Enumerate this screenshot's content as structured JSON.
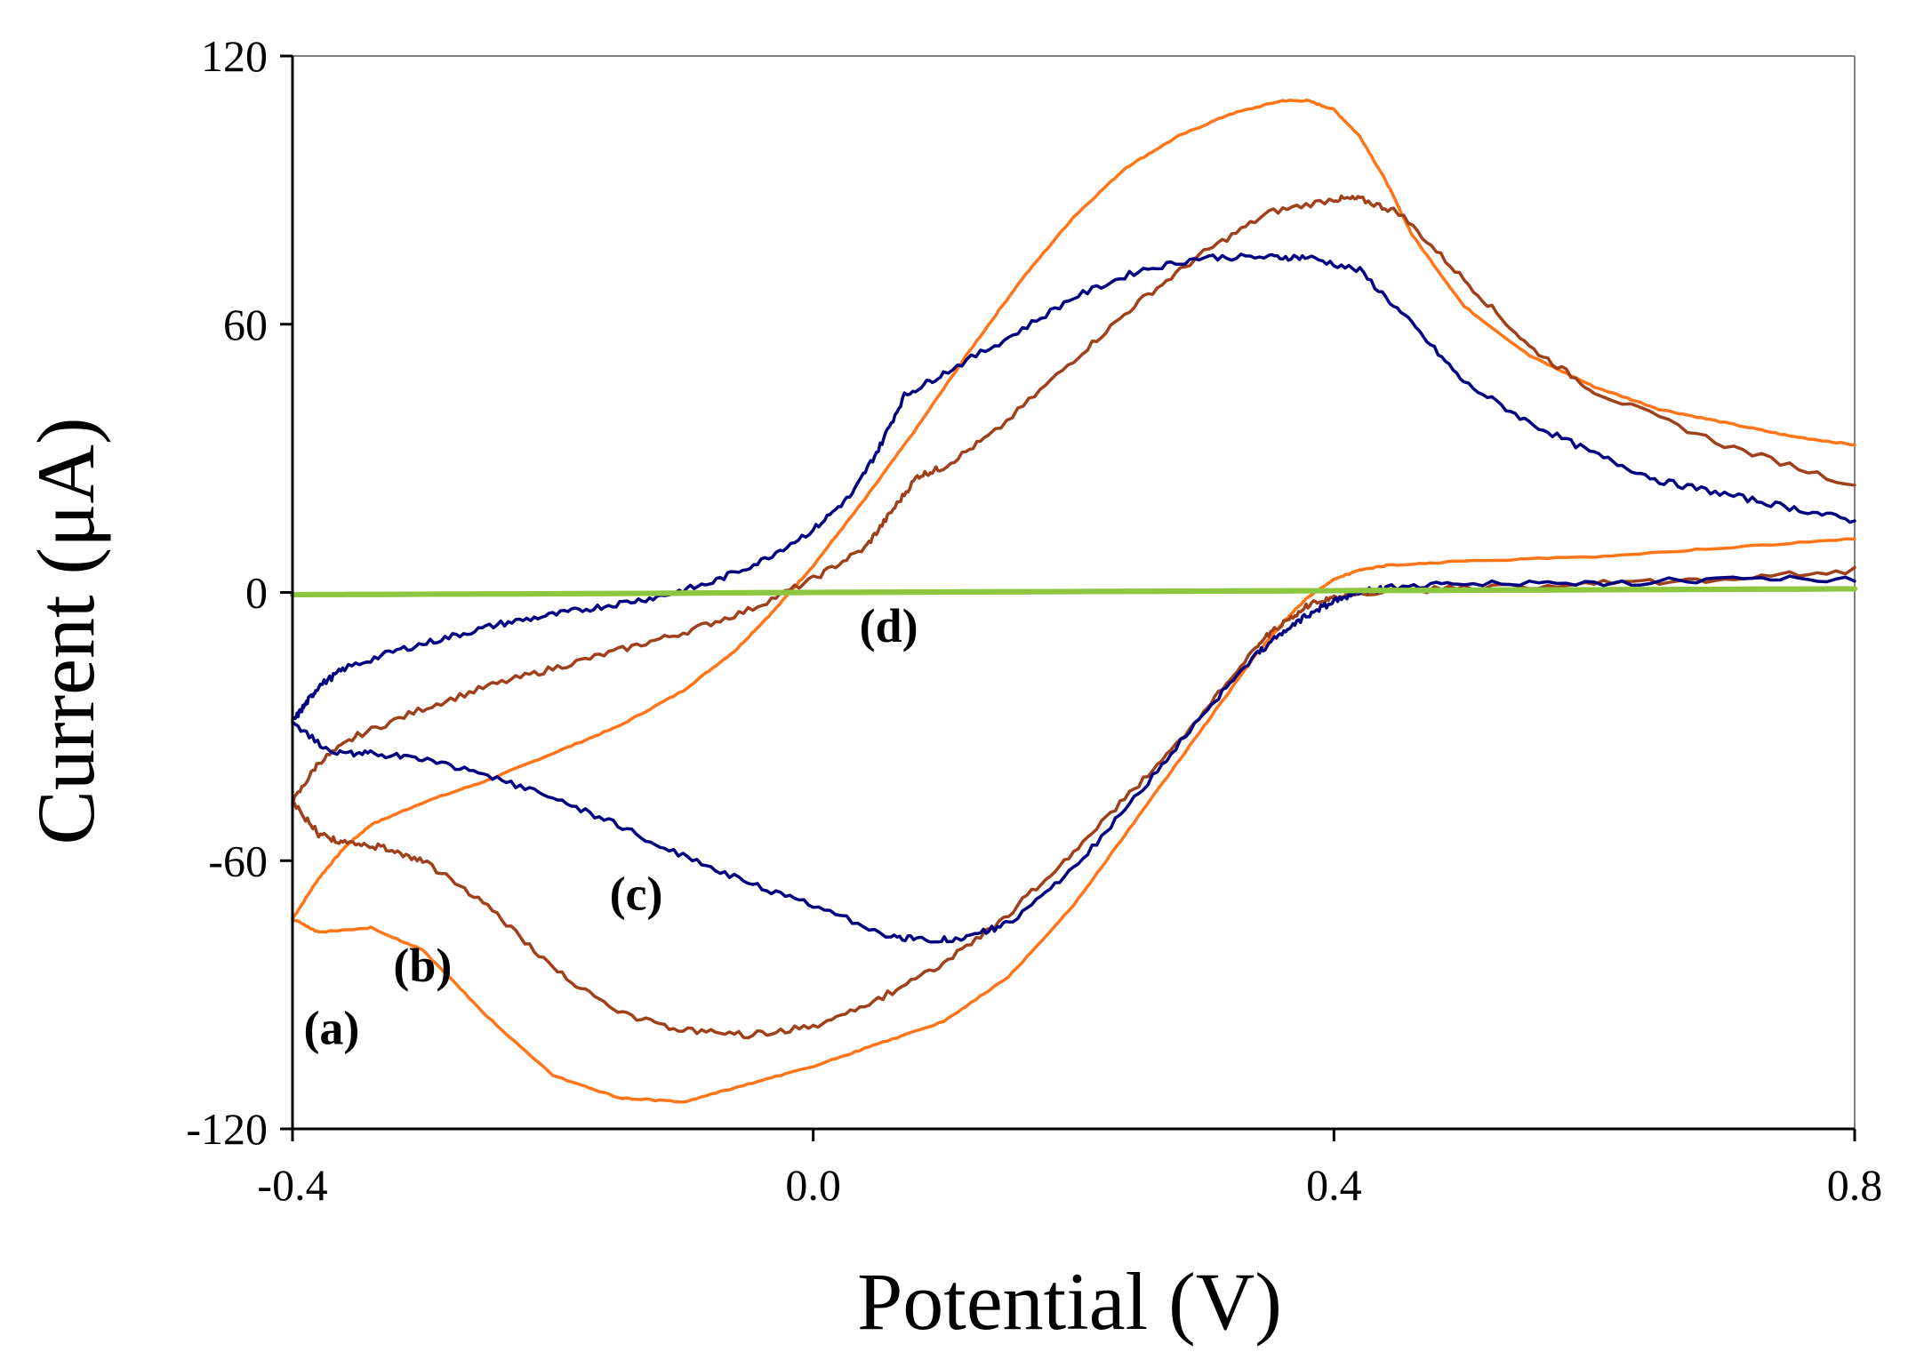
{
  "chart_data": {
    "type": "line",
    "title": "",
    "xlabel": "Potential (V)",
    "ylabel": "Current (μA)",
    "xlim": [
      -0.4,
      0.8
    ],
    "ylim": [
      -120,
      120
    ],
    "xticks": [
      -0.4,
      0.0,
      0.4,
      0.8
    ],
    "yticks": [
      -120,
      -60,
      0,
      60,
      120
    ],
    "xtick_labels": [
      "-0.4",
      "0.0",
      "0.4",
      "0.8"
    ],
    "ytick_labels": [
      "-120",
      "-60",
      "0",
      "60",
      "120"
    ],
    "grid": false,
    "legend": "none",
    "series": [
      {
        "name": "(a)",
        "color": "#FF7518",
        "label_at": [
          -0.37,
          -101
        ],
        "anodic": {
          "x": [
            -0.4,
            -0.38,
            -0.36,
            -0.34,
            -0.3,
            -0.25,
            -0.2,
            -0.15,
            -0.1,
            -0.06,
            -0.03,
            0.0,
            0.04,
            0.08,
            0.12,
            0.16,
            0.2,
            0.24,
            0.28,
            0.32,
            0.36,
            0.38,
            0.4,
            0.42,
            0.44,
            0.46,
            0.5,
            0.55,
            0.6,
            0.65,
            0.7,
            0.75,
            0.8
          ],
          "y": [
            -73,
            -64,
            -57,
            -52,
            -47,
            -42,
            -36,
            -30,
            -22,
            -13,
            -4,
            6,
            21,
            37,
            54,
            70,
            84,
            95,
            102,
            107,
            110,
            110,
            108,
            102,
            92,
            80,
            64,
            53,
            46,
            41,
            38,
            35,
            33
          ]
        },
        "cathodic": {
          "x": [
            0.8,
            0.7,
            0.6,
            0.5,
            0.44,
            0.42,
            0.4,
            0.38,
            0.36,
            0.34,
            0.3,
            0.25,
            0.2,
            0.15,
            0.1,
            0.05,
            0.0,
            -0.05,
            -0.1,
            -0.15,
            -0.2,
            -0.25,
            -0.3,
            -0.34,
            -0.38,
            -0.4
          ],
          "y": [
            12,
            10,
            8,
            7,
            6,
            5,
            3,
            -1,
            -7,
            -14,
            -30,
            -50,
            -70,
            -86,
            -96,
            -101,
            -106,
            -110,
            -114,
            -113,
            -108,
            -95,
            -80,
            -75,
            -76,
            -73
          ]
        }
      },
      {
        "name": "(b)",
        "color": "#A0401A",
        "label_at": [
          -0.3,
          -87
        ],
        "anodic": {
          "x": [
            -0.4,
            -0.38,
            -0.35,
            -0.3,
            -0.25,
            -0.2,
            -0.15,
            -0.1,
            -0.05,
            0.0,
            0.04,
            0.06,
            0.08,
            0.1,
            0.14,
            0.2,
            0.25,
            0.3,
            0.35,
            0.4,
            0.42,
            0.45,
            0.5,
            0.55,
            0.6,
            0.7,
            0.8
          ],
          "y": [
            -47,
            -38,
            -32,
            -26,
            -21,
            -17,
            -13,
            -9,
            -4,
            3,
            10,
            18,
            26,
            28,
            36,
            52,
            65,
            76,
            85,
            88,
            88,
            85,
            70,
            55,
            45,
            33,
            24
          ]
        },
        "cathodic": {
          "x": [
            0.8,
            0.7,
            0.6,
            0.5,
            0.42,
            0.4,
            0.38,
            0.36,
            0.34,
            0.3,
            0.25,
            0.2,
            0.15,
            0.1,
            0.05,
            0.0,
            -0.05,
            -0.1,
            -0.15,
            -0.2,
            -0.25,
            -0.3,
            -0.33,
            -0.36,
            -0.38,
            -0.4
          ],
          "y": [
            5,
            3,
            2,
            1,
            0,
            -1,
            -3,
            -7,
            -12,
            -27,
            -43,
            -58,
            -72,
            -83,
            -91,
            -97,
            -99,
            -98,
            -94,
            -84,
            -70,
            -60,
            -57,
            -56,
            -54,
            -47
          ]
        }
      },
      {
        "name": "(c)",
        "color": "#000080",
        "label_at": [
          -0.136,
          -71
        ],
        "anodic": {
          "x": [
            -0.4,
            -0.39,
            -0.38,
            -0.36,
            -0.32,
            -0.28,
            -0.24,
            -0.2,
            -0.16,
            -0.12,
            -0.08,
            -0.04,
            0.0,
            0.03,
            0.05,
            0.07,
            0.1,
            0.15,
            0.2,
            0.25,
            0.3,
            0.35,
            0.38,
            0.42,
            0.46,
            0.5,
            0.55,
            0.6,
            0.65,
            0.7,
            0.75,
            0.8
          ],
          "y": [
            -29,
            -25,
            -21,
            -17,
            -13,
            -10,
            -7,
            -5,
            -3,
            -1,
            2,
            7,
            14,
            22,
            32,
            44,
            49,
            57,
            66,
            72,
            75,
            75,
            75,
            72,
            60,
            47,
            38,
            31,
            25,
            22,
            19,
            16
          ]
        },
        "cathodic": {
          "x": [
            0.8,
            0.7,
            0.6,
            0.5,
            0.44,
            0.42,
            0.4,
            0.38,
            0.36,
            0.34,
            0.3,
            0.25,
            0.2,
            0.15,
            0.12,
            0.09,
            0.06,
            0.0,
            -0.05,
            -0.1,
            -0.15,
            -0.2,
            -0.25,
            -0.3,
            -0.34,
            -0.37,
            -0.4
          ],
          "y": [
            3,
            3,
            2,
            2,
            1,
            0,
            -2,
            -5,
            -9,
            -14,
            -27,
            -45,
            -62,
            -74,
            -77,
            -78,
            -77,
            -70,
            -65,
            -59,
            -52,
            -46,
            -41,
            -37,
            -36,
            -36,
            -29
          ]
        }
      },
      {
        "name": "(d)",
        "color": "#8DC63F",
        "label_at": [
          0.058,
          -11
        ],
        "anodic": {
          "x": [
            -0.4,
            -0.2,
            0.0,
            0.2,
            0.4,
            0.6,
            0.8
          ],
          "y": [
            -0.5,
            -0.3,
            0.0,
            0.2,
            0.4,
            0.6,
            0.8
          ]
        },
        "cathodic": {
          "x": [
            0.8,
            0.6,
            0.4,
            0.2,
            0.0,
            -0.2,
            -0.4
          ],
          "y": [
            0.8,
            0.6,
            0.4,
            0.2,
            0.0,
            -0.3,
            -0.5
          ]
        }
      }
    ]
  }
}
